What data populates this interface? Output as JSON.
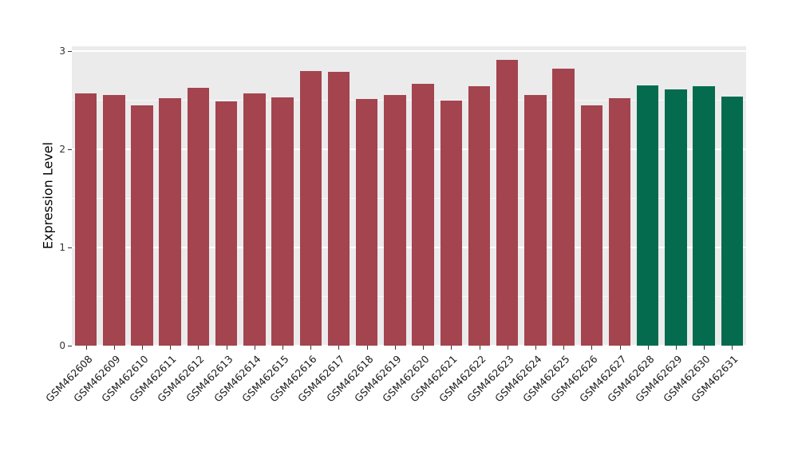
{
  "chart_data": {
    "type": "bar",
    "title": "",
    "xlabel": "",
    "ylabel": "Expression Level",
    "ylim": [
      0,
      3
    ],
    "yticks": [
      0,
      1,
      2,
      3
    ],
    "minor_ticks": [
      0.5,
      1.5,
      2.5
    ],
    "grid": true,
    "legend": "none",
    "panel_bg": "#EBEBEB",
    "grid_color": "#FFFFFF",
    "axis_text_color": "#333333",
    "categories": [
      "GSM462608",
      "GSM462609",
      "GSM462610",
      "GSM462611",
      "GSM462612",
      "GSM462613",
      "GSM462614",
      "GSM462615",
      "GSM462616",
      "GSM462617",
      "GSM462618",
      "GSM462619",
      "GSM462620",
      "GSM462621",
      "GSM462622",
      "GSM462623",
      "GSM462624",
      "GSM462625",
      "GSM462626",
      "GSM462627",
      "GSM462628",
      "GSM462629",
      "GSM462630",
      "GSM462631"
    ],
    "values": [
      2.57,
      2.55,
      2.45,
      2.52,
      2.63,
      2.49,
      2.57,
      2.53,
      2.8,
      2.79,
      2.51,
      2.55,
      2.67,
      2.5,
      2.64,
      2.91,
      2.55,
      2.82,
      2.45,
      2.52,
      2.65,
      2.61,
      2.64,
      2.54
    ],
    "groups": [
      "red_group",
      "red_group",
      "red_group",
      "red_group",
      "red_group",
      "red_group",
      "red_group",
      "red_group",
      "red_group",
      "red_group",
      "red_group",
      "red_group",
      "red_group",
      "red_group",
      "red_group",
      "red_group",
      "red_group",
      "red_group",
      "red_group",
      "red_group",
      "green_group",
      "green_group",
      "green_group",
      "green_group"
    ],
    "group_colors": {
      "red_group": "#A3444F",
      "green_group": "#046B4F"
    }
  }
}
